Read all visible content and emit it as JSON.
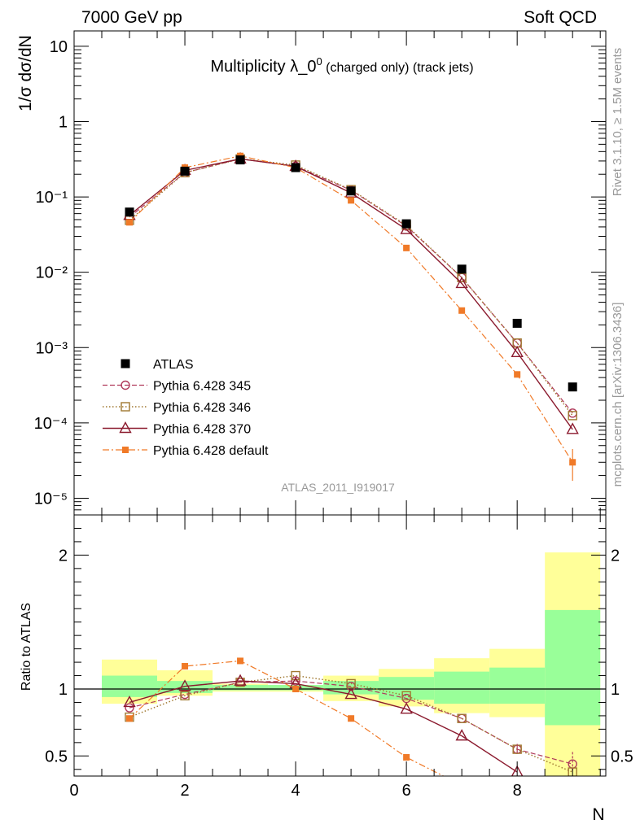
{
  "header": {
    "left": "7000 GeV pp",
    "right": "Soft QCD",
    "title_main": "Multiplicity λ_0",
    "title_sup": "0",
    "title_tail": " (charged only) (track jets)"
  },
  "side": {
    "rivet": "Rivet 3.1.10, ≥ 1.5M events",
    "mcplots": "mcplots.cern.ch [arXiv:1306.3436]"
  },
  "analysis_id": "ATLAS_2011_I919017",
  "colors": {
    "atlas": "#000000",
    "p345": "#b03a5b",
    "p346": "#a07830",
    "p370": "#8b1a2e",
    "pdef": "#f07a28",
    "band_inner": "#99ff99",
    "band_outer": "#ffff99"
  },
  "legend": [
    {
      "key": "atlas",
      "label": "ATLAS"
    },
    {
      "key": "p345",
      "label": "Pythia 6.428 345"
    },
    {
      "key": "p346",
      "label": "Pythia 6.428 346"
    },
    {
      "key": "p370",
      "label": "Pythia 6.428 370"
    },
    {
      "key": "pdef",
      "label": "Pythia 6.428 default"
    }
  ],
  "chart_data": [
    {
      "type": "scatter",
      "panel": "main",
      "ylabel": "1/σ dσ/dN",
      "yscale": "log",
      "ylim": [
        6e-06,
        16
      ],
      "xlim": [
        0,
        9.6
      ],
      "ytick_labels": [
        "10",
        "1",
        "10⁻¹",
        "10⁻²",
        "10⁻³",
        "10⁻⁴",
        "10⁻⁵"
      ],
      "x": [
        1,
        2,
        3,
        4,
        5,
        6,
        7,
        8,
        9
      ],
      "series": [
        {
          "name": "ATLAS",
          "key": "atlas",
          "values": [
            0.063,
            0.22,
            0.31,
            0.245,
            0.12,
            0.044,
            0.011,
            0.0021,
            0.0003
          ]
        },
        {
          "name": "Pythia 6.428 345",
          "key": "p345",
          "values": [
            0.054,
            0.21,
            0.32,
            0.255,
            0.123,
            0.041,
            0.0085,
            0.00115,
            0.000135
          ]
        },
        {
          "name": "Pythia 6.428 346",
          "key": "p346",
          "values": [
            0.049,
            0.21,
            0.32,
            0.265,
            0.125,
            0.042,
            0.0085,
            0.00115,
            0.000125
          ]
        },
        {
          "name": "Pythia 6.428 370",
          "key": "p370",
          "values": [
            0.057,
            0.225,
            0.32,
            0.255,
            0.113,
            0.037,
            0.0071,
            0.00086,
            8.2e-05
          ]
        },
        {
          "name": "Pythia 6.428 default",
          "key": "pdef",
          "values": [
            0.046,
            0.245,
            0.35,
            0.245,
            0.09,
            0.021,
            0.0031,
            0.00044,
            3e-05
          ]
        }
      ]
    },
    {
      "type": "line",
      "panel": "ratio",
      "ylabel": "Ratio to ATLAS",
      "xlabel": "N",
      "ylim": [
        0.35,
        2.3
      ],
      "xlim": [
        0,
        9.6
      ],
      "xtick_labels": [
        "0",
        "2",
        "4",
        "6",
        "8"
      ],
      "ytick_labels": [
        "0.5",
        "1",
        "2"
      ],
      "x": [
        1,
        2,
        3,
        4,
        5,
        6,
        7,
        8,
        9
      ],
      "bands": {
        "edges": [
          [
            0.5,
            1.5
          ],
          [
            1.5,
            2.5
          ],
          [
            2.5,
            3.5
          ],
          [
            3.5,
            4.5
          ],
          [
            4.5,
            5.5
          ],
          [
            5.5,
            6.5
          ],
          [
            6.5,
            7.5
          ],
          [
            7.5,
            8.5
          ],
          [
            8.5,
            9.5
          ]
        ],
        "inner": [
          [
            0.94,
            1.1
          ],
          [
            0.97,
            1.06
          ],
          [
            0.99,
            1.03
          ],
          [
            0.99,
            1.03
          ],
          [
            0.96,
            1.06
          ],
          [
            0.92,
            1.09
          ],
          [
            0.89,
            1.13
          ],
          [
            0.89,
            1.16
          ],
          [
            0.73,
            1.59
          ]
        ],
        "outer": [
          [
            0.89,
            1.22
          ],
          [
            0.95,
            1.14
          ],
          [
            0.98,
            1.04
          ],
          [
            0.98,
            1.03
          ],
          [
            0.91,
            1.1
          ],
          [
            0.87,
            1.15
          ],
          [
            0.82,
            1.23
          ],
          [
            0.79,
            1.3
          ],
          [
            0.35,
            2.02
          ]
        ]
      },
      "series": [
        {
          "name": "Pythia 6.428 345",
          "key": "p345",
          "values": [
            0.86,
            0.96,
            1.05,
            1.06,
            1.02,
            0.93,
            0.78,
            0.55,
            0.44
          ]
        },
        {
          "name": "Pythia 6.428 346",
          "key": "p346",
          "values": [
            0.79,
            0.95,
            1.05,
            1.1,
            1.04,
            0.95,
            0.78,
            0.55,
            0.38
          ]
        },
        {
          "name": "Pythia 6.428 370",
          "key": "p370",
          "values": [
            0.9,
            1.02,
            1.06,
            1.04,
            0.96,
            0.85,
            0.65,
            0.38,
            null
          ]
        },
        {
          "name": "Pythia 6.428 default",
          "key": "pdef",
          "values": [
            0.78,
            1.17,
            1.21,
            1.0,
            0.78,
            0.49,
            0.28,
            null,
            null
          ]
        }
      ]
    }
  ]
}
